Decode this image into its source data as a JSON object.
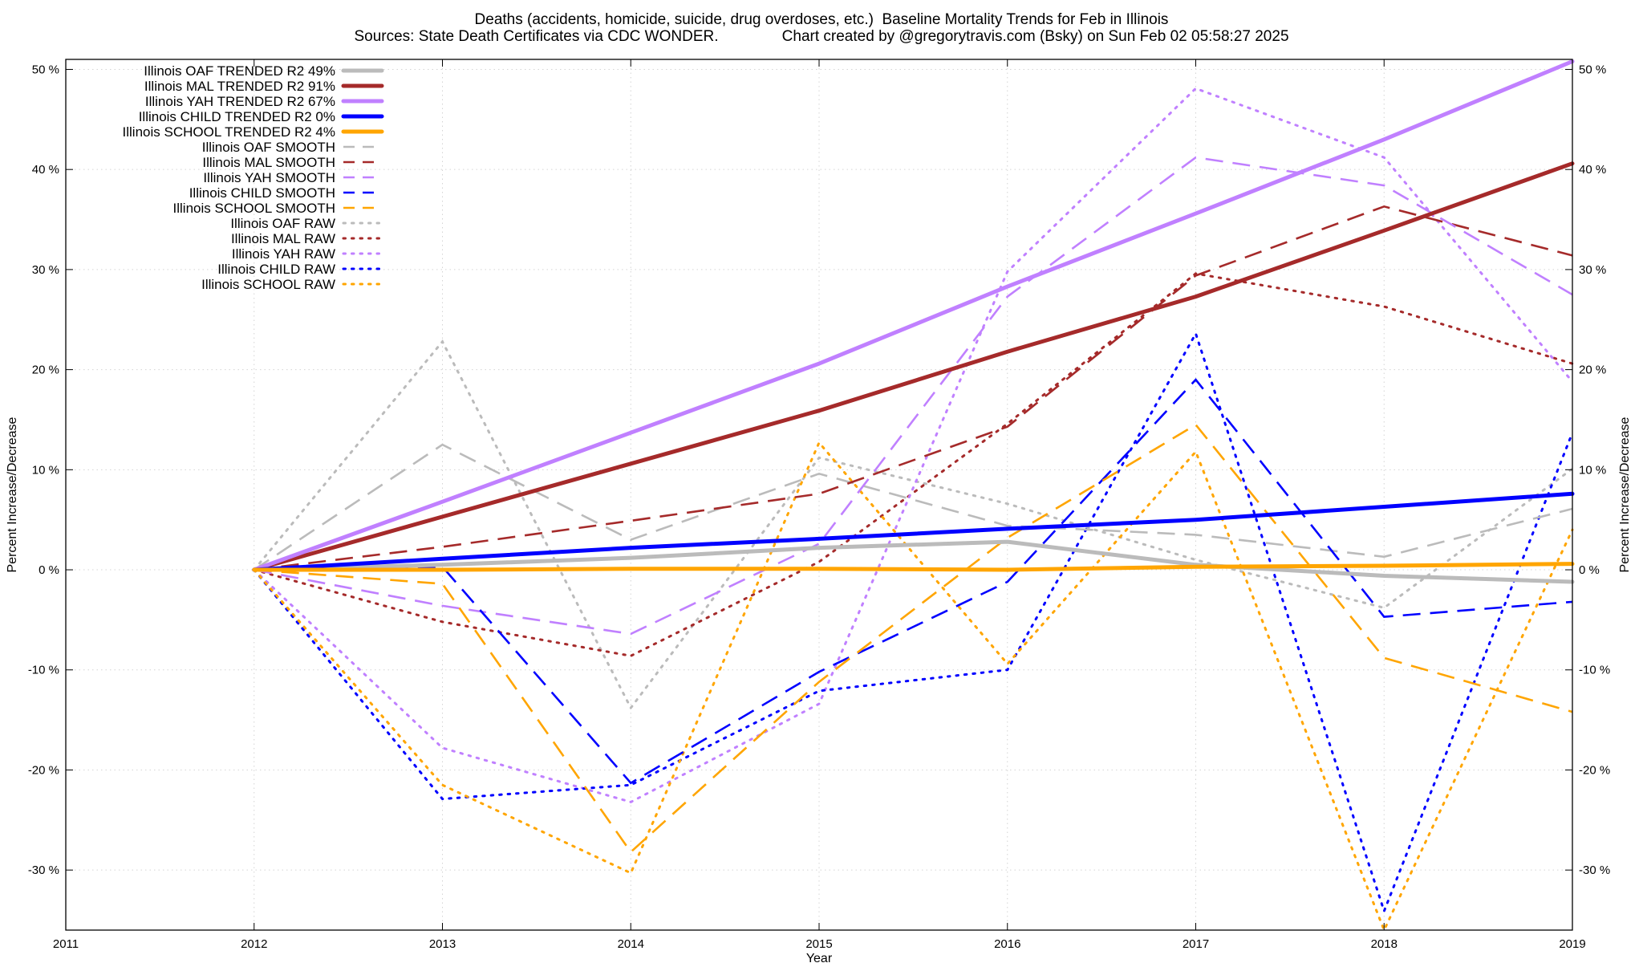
{
  "chart_data": {
    "type": "line",
    "title": "Deaths (accidents, homicide, suicide, drug overdoses, etc.)  Baseline Mortality Trends for Feb in Illinois",
    "subtitle": "Sources: State Death Certificates via CDC WONDER.               Chart created by @gregorytravis.com (Bsky) on Sun Feb 02 05:58:27 2025",
    "xlabel": "Year",
    "ylabel": "Percent Increase/Decrease",
    "y2label": "Percent Increase/Decrease",
    "xlim": [
      2011,
      2019
    ],
    "ylim": [
      -36,
      51
    ],
    "x_ticks": [
      2011,
      2012,
      2013,
      2014,
      2015,
      2016,
      2017,
      2018,
      2019
    ],
    "y_ticks": [
      -30,
      -20,
      -10,
      0,
      10,
      20,
      30,
      40,
      50
    ],
    "y_tick_labels": [
      "-30 %",
      "-20 %",
      "-10 %",
      "0 %",
      "10 %",
      "20 %",
      "30 %",
      "40 %",
      "50 %"
    ],
    "grid": true,
    "legend_position": "top-left",
    "x": [
      2012,
      2013,
      2014,
      2015,
      2016,
      2017,
      2018,
      2019
    ],
    "series": [
      {
        "name": "Illinois OAF TRENDED R2  49%",
        "style": "solid",
        "color": "#BBBBBB",
        "values": [
          0,
          0.5,
          1.2,
          2.2,
          2.8,
          0.5,
          -0.6,
          -1.2
        ]
      },
      {
        "name": "Illinois MAL TRENDED R2  91%",
        "style": "solid",
        "color": "#A52A2A",
        "values": [
          0,
          5.3,
          10.6,
          15.9,
          21.8,
          27.3,
          33.9,
          40.6
        ]
      },
      {
        "name": "Illinois YAH TRENDED R2  67%",
        "style": "solid",
        "color": "#C080FF",
        "values": [
          0,
          6.8,
          13.7,
          20.6,
          28.3,
          35.6,
          43.0,
          50.8
        ]
      },
      {
        "name": "Illinois CHILD TRENDED R2   0%",
        "style": "solid",
        "color": "#0000FF",
        "values": [
          0,
          1.1,
          2.2,
          3.1,
          4.1,
          5.0,
          6.3,
          7.6
        ]
      },
      {
        "name": "Illinois SCHOOL TRENDED R2   4%",
        "style": "solid",
        "color": "#FFA500",
        "values": [
          0,
          0.0,
          0.1,
          0.1,
          0.0,
          0.3,
          0.4,
          0.6
        ]
      },
      {
        "name": "Illinois OAF SMOOTH",
        "style": "dashed",
        "color": "#BBBBBB",
        "values": [
          0,
          12.5,
          3.0,
          9.6,
          4.4,
          3.5,
          1.3,
          6.1
        ]
      },
      {
        "name": "Illinois MAL SMOOTH",
        "style": "dashed",
        "color": "#A52A2A",
        "values": [
          0,
          2.3,
          4.9,
          7.6,
          14.3,
          29.4,
          36.3,
          31.4
        ]
      },
      {
        "name": "Illinois YAH SMOOTH",
        "style": "dashed",
        "color": "#C080FF",
        "values": [
          0,
          -3.6,
          -6.4,
          2.6,
          27.3,
          41.2,
          38.4,
          27.5
        ]
      },
      {
        "name": "Illinois CHILD SMOOTH",
        "style": "dashed",
        "color": "#0000FF",
        "values": [
          0,
          0.3,
          -21.3,
          -10.2,
          -1.2,
          19.0,
          -4.7,
          -3.2
        ]
      },
      {
        "name": "Illinois SCHOOL SMOOTH",
        "style": "dashed",
        "color": "#FFA500",
        "values": [
          0,
          -1.4,
          -28.2,
          -11.2,
          3.2,
          14.5,
          -8.8,
          -14.2
        ]
      },
      {
        "name": "Illinois OAF RAW",
        "style": "dotted",
        "color": "#BBBBBB",
        "values": [
          0,
          22.8,
          -13.8,
          11.2,
          6.6,
          1.0,
          -3.8,
          10.1
        ]
      },
      {
        "name": "Illinois MAL RAW",
        "style": "dotted",
        "color": "#A52A2A",
        "values": [
          0,
          -5.2,
          -8.6,
          0.8,
          14.6,
          29.6,
          26.3,
          20.6
        ]
      },
      {
        "name": "Illinois YAH RAW",
        "style": "dotted",
        "color": "#C080FF",
        "values": [
          0,
          -17.8,
          -23.2,
          -13.4,
          29.8,
          48.1,
          41.2,
          18.8
        ]
      },
      {
        "name": "Illinois CHILD RAW",
        "style": "dotted",
        "color": "#0000FF",
        "values": [
          0,
          -22.9,
          -21.5,
          -12.1,
          -10.0,
          23.6,
          -34.1,
          13.7
        ]
      },
      {
        "name": "Illinois SCHOOL RAW",
        "style": "dotted",
        "color": "#FFA500",
        "values": [
          0,
          -21.5,
          -30.3,
          12.7,
          -9.4,
          11.8,
          -36.0,
          4.0
        ]
      }
    ]
  }
}
